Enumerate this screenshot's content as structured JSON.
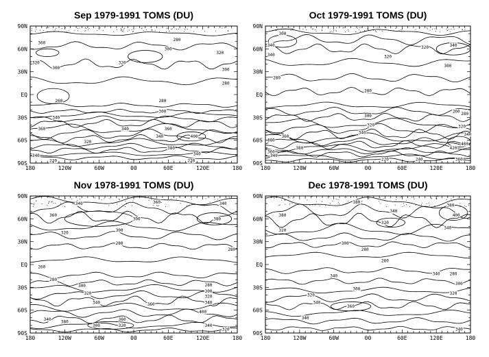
{
  "chart_data": [
    {
      "type": "contour",
      "title": "Sep 1979-1991",
      "source": "TOMS",
      "unit": "(DU)",
      "xticks": [
        "180",
        "120W",
        "60W",
        "00",
        "60E",
        "120E",
        "180"
      ],
      "yticks": [
        "90N",
        "60N",
        "30N",
        "EQ",
        "30S",
        "60S",
        "90S"
      ],
      "x_range": [
        -180,
        180
      ],
      "y_range": [
        -90,
        90
      ],
      "contour_labels": [
        {
          "value": "280",
          "lon": 75,
          "lat": 72
        },
        {
          "value": "300",
          "lon": -160,
          "lat": 68
        },
        {
          "value": "300",
          "lon": 60,
          "lat": 60
        },
        {
          "value": "320",
          "lon": 150,
          "lat": 55
        },
        {
          "value": "320",
          "lon": -170,
          "lat": 42
        },
        {
          "value": "300",
          "lon": -135,
          "lat": 35
        },
        {
          "value": "320",
          "lon": -20,
          "lat": 42
        },
        {
          "value": "300",
          "lon": 160,
          "lat": 33
        },
        {
          "value": "280",
          "lon": 160,
          "lat": 15
        },
        {
          "value": "260",
          "lon": -130,
          "lat": -8
        },
        {
          "value": "280",
          "lon": 50,
          "lat": -8
        },
        {
          "value": "300",
          "lon": 50,
          "lat": -22
        },
        {
          "value": "340",
          "lon": -135,
          "lat": -30
        },
        {
          "value": "360",
          "lon": -160,
          "lat": -45
        },
        {
          "value": "340",
          "lon": -15,
          "lat": -45
        },
        {
          "value": "360",
          "lon": 60,
          "lat": -45
        },
        {
          "value": "340",
          "lon": 45,
          "lat": -55
        },
        {
          "value": "400",
          "lon": 105,
          "lat": -55
        },
        {
          "value": "320",
          "lon": -80,
          "lat": -62
        },
        {
          "value": "380",
          "lon": 65,
          "lat": -70
        },
        {
          "value": "340",
          "lon": 110,
          "lat": -78
        },
        {
          "value": "340",
          "lon": -170,
          "lat": -80
        },
        {
          "value": "220",
          "lon": -140,
          "lat": -87
        },
        {
          "value": "220",
          "lon": 100,
          "lat": -87
        }
      ]
    },
    {
      "type": "contour",
      "title": "Oct 1979-1991",
      "source": "TOMS",
      "unit": "(DU)",
      "xticks": [
        "180",
        "120W",
        "60W",
        "00",
        "60E",
        "120E",
        "180"
      ],
      "yticks": [
        "90N",
        "60N",
        "30N",
        "EQ",
        "30S",
        "60S",
        "90S"
      ],
      "x_range": [
        -180,
        180
      ],
      "y_range": [
        -90,
        90
      ],
      "contour_labels": [
        {
          "value": "300",
          "lon": -150,
          "lat": 80
        },
        {
          "value": "340",
          "lon": -170,
          "lat": 65
        },
        {
          "value": "340",
          "lon": -170,
          "lat": 52
        },
        {
          "value": "320",
          "lon": 35,
          "lat": 50
        },
        {
          "value": "320",
          "lon": 100,
          "lat": 62
        },
        {
          "value": "340",
          "lon": 150,
          "lat": 65
        },
        {
          "value": "300",
          "lon": 140,
          "lat": 38
        },
        {
          "value": "280",
          "lon": -160,
          "lat": 22
        },
        {
          "value": "280",
          "lon": 0,
          "lat": 5
        },
        {
          "value": "260",
          "lon": 155,
          "lat": -22
        },
        {
          "value": "280",
          "lon": 170,
          "lat": -25
        },
        {
          "value": "300",
          "lon": 0,
          "lat": -28
        },
        {
          "value": "320",
          "lon": 5,
          "lat": -40
        },
        {
          "value": "340",
          "lon": -10,
          "lat": -50
        },
        {
          "value": "320",
          "lon": 165,
          "lat": -42
        },
        {
          "value": "340",
          "lon": 175,
          "lat": -52
        },
        {
          "value": "360",
          "lon": -145,
          "lat": -55
        },
        {
          "value": "380",
          "lon": -170,
          "lat": -60
        },
        {
          "value": "380",
          "lon": -120,
          "lat": -70
        },
        {
          "value": "400",
          "lon": 170,
          "lat": -65
        },
        {
          "value": "420",
          "lon": 150,
          "lat": -70
        },
        {
          "value": "360",
          "lon": -170,
          "lat": -75
        },
        {
          "value": "340",
          "lon": -165,
          "lat": -80
        },
        {
          "value": "220",
          "lon": 30,
          "lat": -85
        },
        {
          "value": "240",
          "lon": 90,
          "lat": -85
        },
        {
          "value": "360",
          "lon": 160,
          "lat": -85
        }
      ]
    },
    {
      "type": "contour",
      "title": "Nov 1978-1991",
      "source": "TOMS",
      "unit": "(DU)",
      "xticks": [
        "180",
        "120W",
        "60W",
        "00",
        "60E",
        "120E",
        "180"
      ],
      "yticks": [
        "90N",
        "60N",
        "30N",
        "EQ",
        "30S",
        "60S",
        "90S"
      ],
      "x_range": [
        -180,
        180
      ],
      "y_range": [
        -90,
        90
      ],
      "contour_labels": [
        {
          "value": "340",
          "lon": -95,
          "lat": 80
        },
        {
          "value": "360",
          "lon": -140,
          "lat": 65
        },
        {
          "value": "360",
          "lon": 40,
          "lat": 82
        },
        {
          "value": "320",
          "lon": -120,
          "lat": 42
        },
        {
          "value": "300",
          "lon": 5,
          "lat": 60
        },
        {
          "value": "300",
          "lon": -25,
          "lat": 45
        },
        {
          "value": "340",
          "lon": 155,
          "lat": 80
        },
        {
          "value": "380",
          "lon": 145,
          "lat": 60
        },
        {
          "value": "280",
          "lon": -25,
          "lat": 28
        },
        {
          "value": "280",
          "lon": 170,
          "lat": 20
        },
        {
          "value": "260",
          "lon": -160,
          "lat": -3
        },
        {
          "value": "280",
          "lon": -140,
          "lat": -20
        },
        {
          "value": "300",
          "lon": -90,
          "lat": -28
        },
        {
          "value": "320",
          "lon": -80,
          "lat": -38
        },
        {
          "value": "280",
          "lon": 130,
          "lat": -27
        },
        {
          "value": "300",
          "lon": 130,
          "lat": -35
        },
        {
          "value": "320",
          "lon": 130,
          "lat": -42
        },
        {
          "value": "340",
          "lon": -65,
          "lat": -50
        },
        {
          "value": "340",
          "lon": 130,
          "lat": -50
        },
        {
          "value": "360",
          "lon": 30,
          "lat": -52
        },
        {
          "value": "400",
          "lon": 120,
          "lat": -62
        },
        {
          "value": "340",
          "lon": -150,
          "lat": -72
        },
        {
          "value": "360",
          "lon": -20,
          "lat": -72
        },
        {
          "value": "380",
          "lon": -120,
          "lat": -75
        },
        {
          "value": "300",
          "lon": -65,
          "lat": -80
        },
        {
          "value": "320",
          "lon": -20,
          "lat": -80
        },
        {
          "value": "340",
          "lon": 130,
          "lat": -80
        },
        {
          "value": "320",
          "lon": 160,
          "lat": -85
        }
      ]
    },
    {
      "type": "contour",
      "title": "Dec 1978-1991",
      "source": "TOMS",
      "unit": "(DU)",
      "xticks": [
        "180",
        "120W",
        "60W",
        "00",
        "60E",
        "120E",
        "180"
      ],
      "yticks": [
        "90N",
        "60N",
        "30N",
        "EQ",
        "30S",
        "60S",
        "90S"
      ],
      "x_range": [
        -180,
        180
      ],
      "y_range": [
        -90,
        90
      ],
      "contour_labels": [
        {
          "value": "380",
          "lon": -150,
          "lat": 65
        },
        {
          "value": "380",
          "lon": -20,
          "lat": 82
        },
        {
          "value": "340",
          "lon": 45,
          "lat": 70
        },
        {
          "value": "320",
          "lon": 30,
          "lat": 55
        },
        {
          "value": "320",
          "lon": -150,
          "lat": 45
        },
        {
          "value": "380",
          "lon": 145,
          "lat": 78
        },
        {
          "value": "400",
          "lon": 155,
          "lat": 65
        },
        {
          "value": "340",
          "lon": 140,
          "lat": 48
        },
        {
          "value": "300",
          "lon": -40,
          "lat": 28
        },
        {
          "value": "280",
          "lon": -5,
          "lat": 20
        },
        {
          "value": "260",
          "lon": 30,
          "lat": 5
        },
        {
          "value": "280",
          "lon": 150,
          "lat": -12
        },
        {
          "value": "300",
          "lon": 160,
          "lat": -25
        },
        {
          "value": "320",
          "lon": 150,
          "lat": -38
        },
        {
          "value": "340",
          "lon": -60,
          "lat": -15
        },
        {
          "value": "340",
          "lon": 120,
          "lat": -12
        },
        {
          "value": "300",
          "lon": -20,
          "lat": -32
        },
        {
          "value": "320",
          "lon": -100,
          "lat": -40
        },
        {
          "value": "340",
          "lon": -90,
          "lat": -50
        },
        {
          "value": "340",
          "lon": -110,
          "lat": -70
        },
        {
          "value": "360",
          "lon": -30,
          "lat": -55
        },
        {
          "value": "340",
          "lon": 160,
          "lat": -85
        }
      ]
    }
  ]
}
